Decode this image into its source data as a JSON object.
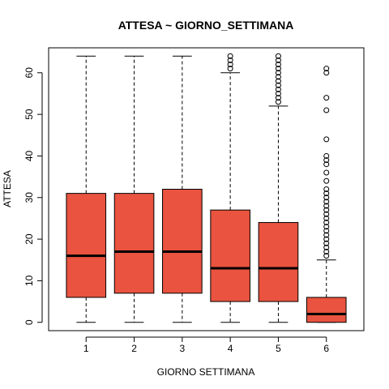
{
  "chart_data": {
    "type": "boxplot",
    "title": "ATTESA ~ GIORNO_SETTIMANA",
    "xlabel": "GIORNO SETTIMANA",
    "ylabel": "ATTESA",
    "categories": [
      "1",
      "2",
      "3",
      "4",
      "5",
      "6"
    ],
    "ylim": [
      -2,
      66
    ],
    "yticks": [
      0,
      10,
      20,
      30,
      40,
      50,
      60
    ],
    "grid": false,
    "box_color": "#E9533F",
    "boxes": [
      {
        "category": "1",
        "whisker_low": 0,
        "q1": 6,
        "median": 16,
        "q3": 31,
        "whisker_high": 64,
        "outliers": []
      },
      {
        "category": "2",
        "whisker_low": 0,
        "q1": 7,
        "median": 17,
        "q3": 31,
        "whisker_high": 64,
        "outliers": []
      },
      {
        "category": "3",
        "whisker_low": 0,
        "q1": 7,
        "median": 17,
        "q3": 32,
        "whisker_high": 64,
        "outliers": []
      },
      {
        "category": "4",
        "whisker_low": 0,
        "q1": 5,
        "median": 13,
        "q3": 27,
        "whisker_high": 60,
        "outliers": [
          61,
          62,
          63,
          64
        ]
      },
      {
        "category": "5",
        "whisker_low": 0,
        "q1": 5,
        "median": 13,
        "q3": 24,
        "whisker_high": 52,
        "outliers": [
          53,
          54,
          55,
          56,
          57,
          58,
          59,
          60,
          61,
          62,
          63,
          64
        ]
      },
      {
        "category": "6",
        "whisker_low": 0,
        "q1": 0,
        "median": 2,
        "q3": 6,
        "whisker_high": 15,
        "outliers": [
          16,
          17,
          18,
          19,
          20,
          21,
          22,
          23,
          24,
          25,
          26,
          27,
          28,
          29,
          30,
          31,
          32,
          34,
          36,
          38,
          39,
          40,
          44,
          51,
          54,
          60,
          61
        ]
      }
    ]
  }
}
